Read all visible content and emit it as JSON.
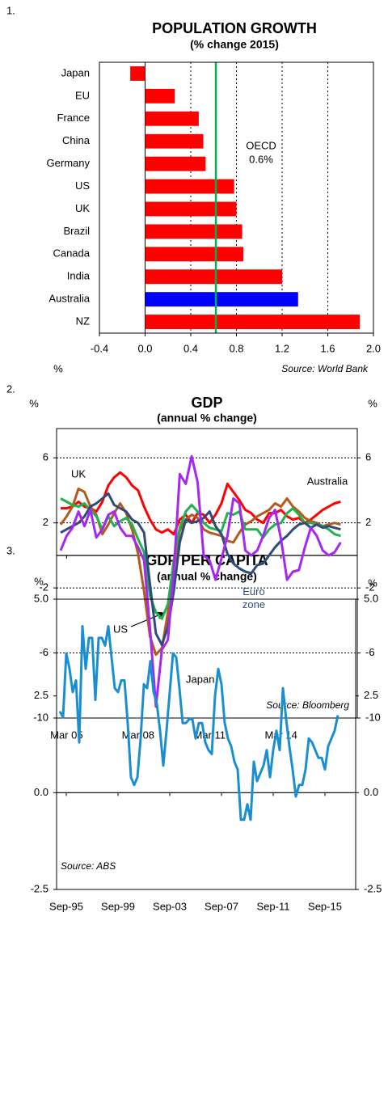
{
  "chart_data": [
    {
      "type": "bar",
      "orientation": "horizontal",
      "number": "1.",
      "title": "POPULATION GROWTH",
      "subtitle": "(% change 2015)",
      "categories": [
        "Japan",
        "EU",
        "France",
        "China",
        "Germany",
        "US",
        "UK",
        "Brazil",
        "Canada",
        "India",
        "Australia",
        "NZ"
      ],
      "values": [
        -0.13,
        0.26,
        0.47,
        0.51,
        0.53,
        0.78,
        0.8,
        0.85,
        0.86,
        1.2,
        1.34,
        1.88
      ],
      "colors": [
        "#ff0000",
        "#ff0000",
        "#ff0000",
        "#ff0000",
        "#ff0000",
        "#ff0000",
        "#ff0000",
        "#ff0000",
        "#ff0000",
        "#ff0000",
        "#0000ff",
        "#ff0000"
      ],
      "xlim": [
        -0.4,
        2.0
      ],
      "xticks": [
        -0.4,
        {
          "value": 0,
          "label": "0.0"
        },
        0.4,
        0.8,
        1.2,
        1.6,
        {
          "value": 2,
          "label": "2.0"
        }
      ],
      "grid": true,
      "reference_line": {
        "value": 0.62,
        "label": "OECD",
        "value_label": "0.6%",
        "color": "#00b050"
      },
      "xlabel": "%",
      "source": "Source: World Bank"
    },
    {
      "type": "line",
      "number": "2.",
      "title": "GDP",
      "subtitle": "(annual % change)",
      "ylabel": "%",
      "categories": [
        null,
        "Mar 05",
        null,
        null,
        null,
        null,
        null,
        null,
        null,
        null,
        null,
        null,
        null,
        "Mar 08",
        null,
        null,
        null,
        null,
        null,
        null,
        null,
        null,
        null,
        null,
        null,
        "Mar 11",
        null,
        null,
        null,
        null,
        null,
        null,
        null,
        null,
        null,
        null,
        null,
        "Mar 14",
        null,
        null,
        null,
        null,
        null,
        null,
        null,
        null,
        null,
        null
      ],
      "series": [
        {
          "name": "Australia",
          "color": "#ff0000",
          "values": [
            2.9,
            2.9,
            3.0,
            3.3,
            3.0,
            2.9,
            2.7,
            3.3,
            4.3,
            4.8,
            5.1,
            4.8,
            4.3,
            4.0,
            3.0,
            2.2,
            1.6,
            1.4,
            1.6,
            1.3,
            2.2,
            2.5,
            2.0,
            2.6,
            2.5,
            2.0,
            2.5,
            3.2,
            4.4,
            3.9,
            3.4,
            2.8,
            2.6,
            2.2,
            2.0,
            2.6,
            2.6,
            2.8,
            2.4,
            2.2,
            2.3,
            2.0,
            2.2,
            2.5,
            2.8,
            3.0,
            3.2,
            3.3
          ]
        },
        {
          "name": "UK",
          "color": "#b35a1f",
          "values": [
            1.9,
            2.4,
            3.0,
            4.1,
            3.9,
            3.0,
            2.5,
            1.3,
            1.9,
            2.6,
            3.2,
            2.6,
            1.6,
            0.1,
            -2.2,
            -5.0,
            -6.1,
            -5.7,
            -3.5,
            -0.8,
            1.5,
            2.2,
            2.5,
            2.3,
            1.6,
            1.4,
            1.3,
            1.2,
            0.9,
            0.8,
            1.4,
            1.9,
            2.1,
            2.4,
            2.6,
            2.8,
            3.2,
            3.0,
            3.5,
            3.0,
            2.7,
            2.3,
            2.1,
            2.0,
            1.8,
            1.9,
            2.0,
            1.9
          ]
        },
        {
          "name": "US",
          "color": "#22b14c",
          "values": [
            3.5,
            3.3,
            3.1,
            3.0,
            3.2,
            2.8,
            2.4,
            1.6,
            2.4,
            1.8,
            2.1,
            2.3,
            1.9,
            1.0,
            0.2,
            -2.5,
            -3.5,
            -3.9,
            -3.0,
            -0.3,
            1.7,
            2.7,
            3.1,
            2.7,
            2.0,
            1.7,
            1.6,
            1.5,
            2.6,
            2.5,
            2.7,
            1.6,
            1.6,
            1.6,
            1.1,
            1.6,
            1.9,
            2.0,
            2.6,
            2.9,
            2.5,
            2.0,
            2.0,
            1.9,
            1.8,
            1.6,
            1.3,
            1.2
          ]
        },
        {
          "name": "Euro zone",
          "color": "#2f4b7c",
          "values": [
            1.4,
            1.6,
            1.8,
            2.0,
            2.4,
            3.0,
            3.2,
            3.5,
            3.8,
            3.1,
            2.9,
            2.7,
            2.2,
            2.0,
            1.4,
            -1.8,
            -4.8,
            -5.5,
            -4.4,
            -2.2,
            0.8,
            2.2,
            2.0,
            2.1,
            2.3,
            2.7,
            1.8,
            1.3,
            0.1,
            -0.5,
            -0.8,
            -1.0,
            -1.1,
            -0.6,
            -0.5,
            0.0,
            0.5,
            0.9,
            1.2,
            1.6,
            1.9,
            2.0,
            1.7,
            1.9,
            1.7,
            1.8,
            1.7,
            1.6
          ]
        },
        {
          "name": "Japan",
          "color": "#a626f2",
          "values": [
            0.3,
            1.2,
            1.7,
            2.7,
            1.8,
            2.8,
            1.1,
            1.6,
            2.5,
            2.7,
            1.7,
            1.2,
            1.2,
            0.5,
            -0.3,
            -4.5,
            -9.3,
            -5.8,
            -5.2,
            -1.0,
            5.0,
            4.4,
            6.1,
            4.5,
            0.0,
            -0.3,
            -1.5,
            -0.2,
            1.2,
            3.5,
            3.2,
            0.3,
            0.0,
            0.3,
            1.2,
            2.3,
            2.8,
            1.0,
            -1.5,
            -1.0,
            -0.9,
            0.5,
            1.7,
            1.2,
            0.3,
            0.0,
            0.2,
            0.8
          ]
        }
      ],
      "ylim": [
        -10,
        7.8
      ],
      "yticks": [
        6,
        2,
        -2,
        -6,
        -10
      ],
      "grid": true,
      "source": "Source: Bloomberg"
    },
    {
      "type": "line",
      "number": "3.",
      "title": "GDP PER CAPITA",
      "subtitle": "(annual % change)",
      "ylabel": "%",
      "categories": [
        null,
        null,
        "Sep-95",
        null,
        null,
        null,
        null,
        null,
        null,
        null,
        null,
        null,
        null,
        null,
        null,
        null,
        null,
        null,
        "Sep-99",
        null,
        null,
        null,
        null,
        null,
        null,
        null,
        null,
        null,
        null,
        null,
        null,
        null,
        null,
        null,
        "Sep-03",
        null,
        null,
        null,
        null,
        null,
        null,
        null,
        null,
        null,
        null,
        null,
        null,
        null,
        null,
        null,
        "Sep-07",
        null,
        null,
        null,
        null,
        null,
        null,
        null,
        null,
        null,
        null,
        null,
        null,
        null,
        null,
        null,
        "Sep-11",
        null,
        null,
        null,
        null,
        null,
        null,
        null,
        null,
        null,
        null,
        null,
        null,
        null,
        null,
        null,
        "Sep-15",
        null,
        null,
        null,
        null
      ],
      "values": [
        2.1,
        1.95,
        3.6,
        3.2,
        2.6,
        2.9,
        1.3,
        4.3,
        3.2,
        4.0,
        4.0,
        2.4,
        4.0,
        4.0,
        3.8,
        4.3,
        3.5,
        2.7,
        2.6,
        2.9,
        2.9,
        1.8,
        0.4,
        0.2,
        0.4,
        1.4,
        2.8,
        2.7,
        3.4,
        2.6,
        2.3,
        1.6,
        0.7,
        1.6,
        2.6,
        3.6,
        3.5,
        2.7,
        1.8,
        1.8,
        1.9,
        1.9,
        1.4,
        1.8,
        1.8,
        1.3,
        1.1,
        1.0,
        2.5,
        3.2,
        2.8,
        1.8,
        1.4,
        1.2,
        0.8,
        0.6,
        -0.7,
        -0.7,
        -0.3,
        -0.7,
        0.8,
        0.3,
        0.5,
        0.7,
        1.1,
        0.4,
        1.1,
        1.6,
        1.1,
        2.7,
        1.9,
        1.2,
        0.6,
        -0.1,
        0.2,
        0.2,
        0.6,
        1.4,
        1.3,
        1.1,
        0.9,
        0.9,
        0.6,
        1.2,
        1.4,
        1.6,
        2.0
      ],
      "color": "#1a8fd0",
      "ylim": [
        -2.5,
        5.0
      ],
      "yticks": [
        {
          "value": 5,
          "label": "5.0"
        },
        2.5,
        {
          "value": 0,
          "label": "0.0"
        },
        -2.5
      ],
      "grid": false,
      "source": "Source: ABS"
    }
  ]
}
